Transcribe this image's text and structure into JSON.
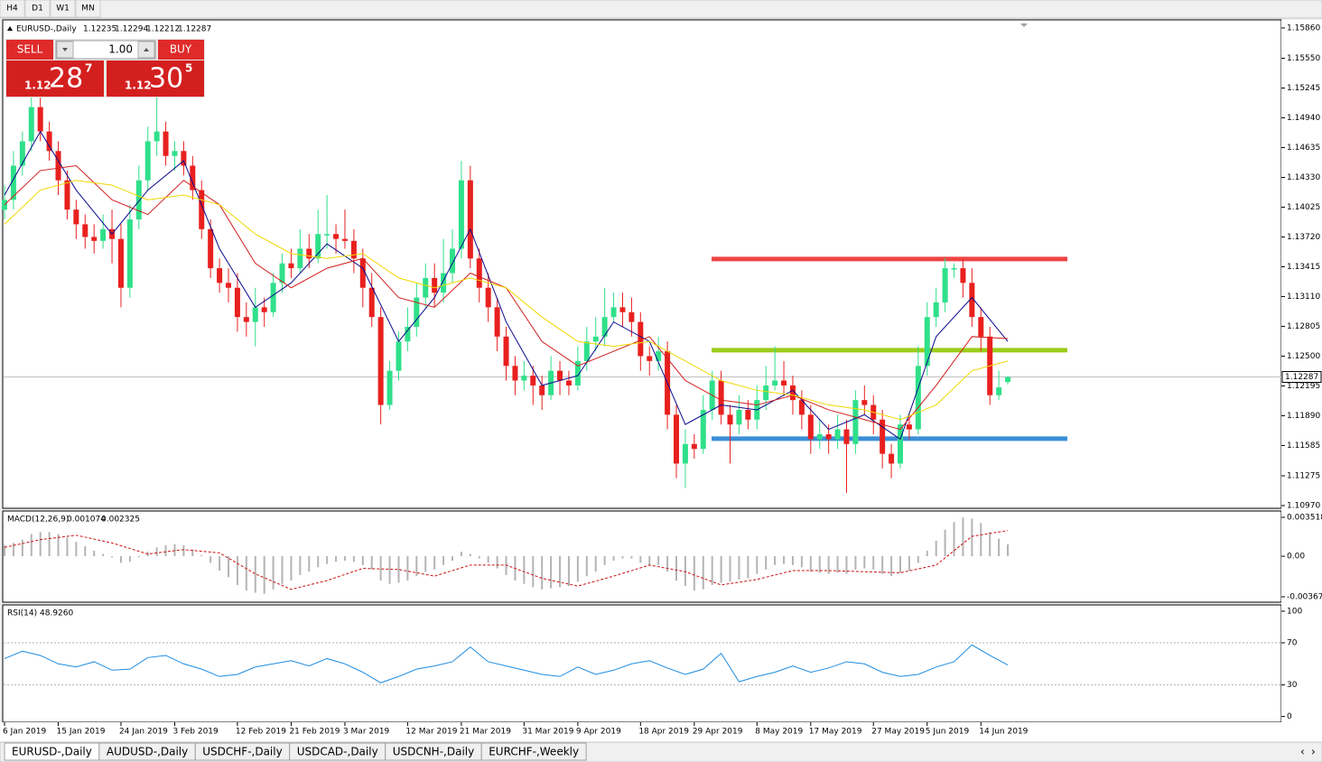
{
  "toolbar": {
    "buttons": [
      "H4",
      "D1",
      "W1",
      "MN"
    ]
  },
  "trade_panel": {
    "sell": "SELL",
    "buy": "BUY",
    "lot": "1.00",
    "sell_price": {
      "big_figure": "1.12",
      "pips": "28",
      "fraction": "7"
    },
    "buy_price": {
      "big_figure": "1.12",
      "pips": "30",
      "fraction": "5"
    }
  },
  "tabs": [
    "EURUSD-,Daily",
    "AUDUSD-,Daily",
    "USDCHF-,Daily",
    "USDCAD-,Daily",
    "USDCNH-,Daily",
    "EURCHF-,Weekly"
  ],
  "chart_data": [
    {
      "type": "candlestick",
      "title": "EURUSD-,Daily",
      "up_color": "#2fe08a",
      "down_color": "#e8201e",
      "categories": [
        "6 Jan 2019",
        null,
        null,
        null,
        null,
        null,
        "15 Jan 2019",
        null,
        null,
        null,
        null,
        null,
        null,
        "24 Jan 2019",
        null,
        null,
        null,
        null,
        null,
        "3 Feb 2019",
        null,
        null,
        null,
        null,
        null,
        null,
        "12 Feb 2019",
        null,
        null,
        null,
        null,
        null,
        "21 Feb 2019",
        null,
        null,
        null,
        null,
        null,
        "3 Mar 2019",
        null,
        null,
        null,
        null,
        null,
        null,
        "12 Mar 2019",
        null,
        null,
        null,
        null,
        null,
        "21 Mar 2019",
        null,
        null,
        null,
        null,
        null,
        null,
        "31 Mar 2019",
        null,
        null,
        null,
        null,
        null,
        "9 Apr 2019",
        null,
        null,
        null,
        null,
        null,
        null,
        "18 Apr 2019",
        null,
        null,
        null,
        null,
        null,
        "29 Apr 2019",
        null,
        null,
        null,
        null,
        null,
        null,
        "8 May 2019",
        null,
        null,
        null,
        null,
        null,
        "17 May 2019",
        null,
        null,
        null,
        null,
        null,
        null,
        "27 May 2019",
        null,
        null,
        null,
        null,
        null,
        "5 Jun 2019",
        null,
        null,
        null,
        null,
        null,
        "14 Jun 2019",
        null,
        null,
        null
      ],
      "open": [
        1.14,
        1.141,
        1.1445,
        1.147,
        1.1505,
        1.148,
        1.146,
        1.143,
        1.14,
        1.1385,
        1.1372,
        1.1368,
        1.138,
        1.137,
        1.132,
        1.139,
        1.143,
        1.147,
        1.148,
        1.1455,
        1.146,
        1.1445,
        1.142,
        1.138,
        1.134,
        1.1325,
        1.132,
        1.129,
        1.1285,
        1.13,
        1.1295,
        1.1325,
        1.1345,
        1.134,
        1.136,
        1.135,
        1.1375,
        1.1375,
        1.137,
        1.1368,
        1.135,
        1.132,
        1.129,
        1.12,
        1.1235,
        1.1265,
        1.128,
        1.131,
        1.133,
        1.1315,
        1.1335,
        1.136,
        1.143,
        1.135,
        1.132,
        1.13,
        1.127,
        1.124,
        1.1225,
        1.123,
        1.122,
        1.121,
        1.1235,
        1.1225,
        1.122,
        1.1245,
        1.1265,
        1.127,
        1.129,
        1.13,
        1.1295,
        1.1285,
        1.125,
        1.1245,
        1.1255,
        1.119,
        1.114,
        1.116,
        1.1155,
        1.1195,
        1.1225,
        1.119,
        1.118,
        1.1195,
        1.1185,
        1.1205,
        1.122,
        1.1225,
        1.122,
        1.1205,
        1.119,
        1.1165,
        1.117,
        1.1165,
        1.1175,
        1.116,
        1.1205,
        1.12,
        1.1185,
        1.115,
        1.114,
        1.118,
        1.1175,
        1.124,
        1.129,
        1.1305,
        1.134,
        1.134,
        1.1325,
        1.129,
        1.127,
        1.121,
        1.12235
      ],
      "high": [
        1.1425,
        1.146,
        1.148,
        1.1515,
        1.152,
        1.149,
        1.147,
        1.144,
        1.141,
        1.1395,
        1.1385,
        1.1395,
        1.14,
        1.1385,
        1.1405,
        1.1445,
        1.1485,
        1.1515,
        1.149,
        1.147,
        1.147,
        1.1455,
        1.143,
        1.139,
        1.135,
        1.134,
        1.1335,
        1.1305,
        1.132,
        1.131,
        1.1335,
        1.1355,
        1.136,
        1.138,
        1.1375,
        1.14,
        1.1415,
        1.1385,
        1.14,
        1.138,
        1.136,
        1.1335,
        1.13,
        1.1245,
        1.1275,
        1.13,
        1.1325,
        1.1345,
        1.1345,
        1.137,
        1.138,
        1.145,
        1.1445,
        1.136,
        1.1335,
        1.131,
        1.128,
        1.125,
        1.1245,
        1.124,
        1.123,
        1.125,
        1.1245,
        1.1235,
        1.126,
        1.128,
        1.129,
        1.132,
        1.1315,
        1.1315,
        1.131,
        1.1295,
        1.126,
        1.127,
        1.1265,
        1.12,
        1.1175,
        1.117,
        1.121,
        1.1235,
        1.1235,
        1.12,
        1.121,
        1.1205,
        1.122,
        1.124,
        1.126,
        1.1245,
        1.123,
        1.1215,
        1.12,
        1.1185,
        1.118,
        1.119,
        1.1185,
        1.1215,
        1.122,
        1.121,
        1.1195,
        1.116,
        1.119,
        1.119,
        1.126,
        1.1305,
        1.132,
        1.135,
        1.1345,
        1.135,
        1.134,
        1.13,
        1.128,
        1.1235,
        1.12294
      ],
      "low": [
        1.139,
        1.14,
        1.1435,
        1.146,
        1.147,
        1.145,
        1.1415,
        1.139,
        1.137,
        1.136,
        1.1355,
        1.136,
        1.1345,
        1.13,
        1.131,
        1.138,
        1.142,
        1.1455,
        1.1445,
        1.144,
        1.1435,
        1.141,
        1.137,
        1.133,
        1.1315,
        1.1305,
        1.1275,
        1.127,
        1.126,
        1.128,
        1.129,
        1.1315,
        1.133,
        1.1335,
        1.134,
        1.1345,
        1.136,
        1.1355,
        1.136,
        1.1335,
        1.13,
        1.128,
        1.118,
        1.1195,
        1.1225,
        1.1255,
        1.127,
        1.13,
        1.13,
        1.1305,
        1.1325,
        1.135,
        1.134,
        1.1305,
        1.1285,
        1.1255,
        1.1225,
        1.121,
        1.1215,
        1.12,
        1.1195,
        1.1205,
        1.121,
        1.121,
        1.1215,
        1.1235,
        1.1255,
        1.126,
        1.1285,
        1.128,
        1.127,
        1.1235,
        1.123,
        1.1235,
        1.1175,
        1.1125,
        1.1115,
        1.1145,
        1.115,
        1.1185,
        1.118,
        1.114,
        1.117,
        1.1175,
        1.1175,
        1.1195,
        1.1215,
        1.121,
        1.119,
        1.1175,
        1.115,
        1.1155,
        1.115,
        1.1155,
        1.111,
        1.115,
        1.119,
        1.117,
        1.1135,
        1.1125,
        1.1135,
        1.1165,
        1.117,
        1.123,
        1.128,
        1.1295,
        1.133,
        1.131,
        1.128,
        1.1255,
        1.12,
        1.1205,
        1.12212
      ],
      "close": [
        1.141,
        1.1445,
        1.147,
        1.1505,
        1.148,
        1.146,
        1.143,
        1.14,
        1.1385,
        1.1372,
        1.1368,
        1.138,
        1.137,
        1.132,
        1.139,
        1.143,
        1.147,
        1.148,
        1.1455,
        1.146,
        1.1445,
        1.142,
        1.138,
        1.134,
        1.1325,
        1.132,
        1.129,
        1.1285,
        1.13,
        1.1295,
        1.1325,
        1.1345,
        1.134,
        1.136,
        1.135,
        1.1375,
        1.1375,
        1.137,
        1.1368,
        1.135,
        1.132,
        1.129,
        1.12,
        1.1235,
        1.1265,
        1.128,
        1.131,
        1.133,
        1.1315,
        1.1335,
        1.136,
        1.143,
        1.135,
        1.132,
        1.13,
        1.127,
        1.124,
        1.1225,
        1.123,
        1.122,
        1.121,
        1.1235,
        1.1225,
        1.122,
        1.1245,
        1.1265,
        1.127,
        1.129,
        1.13,
        1.1295,
        1.1285,
        1.125,
        1.1245,
        1.1255,
        1.119,
        1.114,
        1.116,
        1.1155,
        1.1195,
        1.1225,
        1.119,
        1.118,
        1.1195,
        1.1185,
        1.1205,
        1.122,
        1.1225,
        1.122,
        1.1205,
        1.119,
        1.1165,
        1.117,
        1.1165,
        1.1175,
        1.116,
        1.1205,
        1.12,
        1.1185,
        1.115,
        1.114,
        1.118,
        1.1175,
        1.124,
        1.129,
        1.1305,
        1.134,
        1.134,
        1.1325,
        1.129,
        1.127,
        1.121,
        1.1218,
        1.12287
      ],
      "x": [
        0,
        4,
        8,
        12,
        16,
        20,
        24,
        28,
        32,
        36,
        40,
        44,
        48,
        52,
        56,
        60,
        64,
        68,
        72,
        76,
        80,
        84,
        88,
        92,
        96,
        100,
        104,
        108,
        112
      ],
      "overlays": [
        {
          "color": "#0a0a8c",
          "values": [
            1.1415,
            1.148,
            1.142,
            1.1375,
            1.142,
            1.145,
            1.136,
            1.13,
            1.1325,
            1.1365,
            1.134,
            1.1265,
            1.131,
            1.138,
            1.1285,
            1.122,
            1.123,
            1.1285,
            1.1265,
            1.118,
            1.12,
            1.1195,
            1.1215,
            1.1175,
            1.119,
            1.1165,
            1.127,
            1.131,
            1.1265
          ]
        },
        {
          "color": "#d21e1e",
          "values": [
            1.1405,
            1.144,
            1.1445,
            1.141,
            1.1395,
            1.143,
            1.1405,
            1.1345,
            1.132,
            1.134,
            1.135,
            1.131,
            1.13,
            1.1335,
            1.132,
            1.1265,
            1.124,
            1.1255,
            1.127,
            1.1225,
            1.1205,
            1.12,
            1.121,
            1.1195,
            1.1185,
            1.1175,
            1.122,
            1.127,
            1.1268
          ]
        },
        {
          "color": "#f0d800",
          "values": [
            1.1385,
            1.142,
            1.143,
            1.1425,
            1.141,
            1.1415,
            1.1405,
            1.1375,
            1.1355,
            1.135,
            1.1355,
            1.133,
            1.132,
            1.133,
            1.132,
            1.129,
            1.1265,
            1.126,
            1.1265,
            1.1245,
            1.1225,
            1.1215,
            1.121,
            1.12,
            1.1195,
            1.1185,
            1.12,
            1.1235,
            1.1245
          ]
        }
      ],
      "levels": [
        {
          "value": 1.13494,
          "color": "#ef4444"
        },
        {
          "value": 1.12561,
          "color": "#9ccc1a"
        },
        {
          "value": 1.11655,
          "color": "#3b8fd9"
        }
      ],
      "current_price": 1.12287,
      "ylim": [
        1.10942,
        1.15943
      ],
      "yticks": [
        {
          "value": 1.1586,
          "label": "1.15860"
        },
        {
          "value": 1.1555,
          "label": "1.15550"
        },
        1.15245,
        {
          "value": 1.1494,
          "label": "1.14940"
        },
        1.14635,
        {
          "value": 1.1433,
          "label": "1.14330"
        },
        1.14025,
        {
          "value": 1.1372,
          "label": "1.13720"
        },
        1.13415,
        {
          "value": 1.1311,
          "label": "1.13110"
        },
        1.12805,
        {
          "value": 1.125,
          "label": "1.12500"
        },
        1.12195,
        {
          "value": 1.1189,
          "label": "1.11890"
        },
        1.11585,
        1.11275,
        {
          "value": 1.1097,
          "label": "1.10970"
        }
      ]
    },
    {
      "type": "macd",
      "title": "MACD(12,26,9)",
      "color": "#b4b4b4",
      "values": [
        0.001,
        0.0012,
        0.0015,
        0.002,
        0.0022,
        0.0022,
        0.002,
        0.0017,
        0.0013,
        0.0009,
        0.0005,
        0.0002,
        -0.0001,
        -0.0006,
        -0.0005,
        -0.0001,
        0.0004,
        0.0008,
        0.001,
        0.0011,
        0.001,
        0.0006,
        0.0001,
        -0.0006,
        -0.0013,
        -0.0019,
        -0.0026,
        -0.0031,
        -0.0033,
        -0.0034,
        -0.003,
        -0.0025,
        -0.0022,
        -0.0017,
        -0.0014,
        -0.001,
        -0.0007,
        -0.0005,
        -0.0004,
        -0.0005,
        -0.0008,
        -0.0012,
        -0.0022,
        -0.0025,
        -0.0024,
        -0.0022,
        -0.0018,
        -0.0014,
        -0.0012,
        -0.0008,
        -0.0004,
        0.0004,
        0.0002,
        -0.0002,
        -0.0006,
        -0.0011,
        -0.0017,
        -0.0022,
        -0.0025,
        -0.0028,
        -0.003,
        -0.0029,
        -0.0028,
        -0.0027,
        -0.0023,
        -0.0018,
        -0.0014,
        -0.0008,
        -0.0004,
        -0.0002,
        -0.0002,
        -0.0006,
        -0.0008,
        -0.0008,
        -0.0014,
        -0.0022,
        -0.0027,
        -0.0031,
        -0.003,
        -0.0026,
        -0.0024,
        -0.0023,
        -0.0021,
        -0.002,
        -0.0016,
        -0.0012,
        -0.0008,
        -0.0007,
        -0.0008,
        -0.001,
        -0.0014,
        -0.0015,
        -0.0016,
        -0.0015,
        -0.0016,
        -0.0012,
        -0.0011,
        -0.0012,
        -0.0016,
        -0.0018,
        -0.0015,
        -0.0013,
        -0.0006,
        0.0005,
        0.0014,
        0.0024,
        0.0031,
        0.0035,
        0.0034,
        0.003,
        0.0022,
        0.0016,
        0.001074
      ],
      "signal": {
        "color": "#cc1111",
        "x": [
          0,
          4,
          8,
          12,
          16,
          20,
          24,
          28,
          32,
          36,
          40,
          44,
          48,
          52,
          56,
          60,
          64,
          68,
          72,
          76,
          80,
          84,
          88,
          92,
          96,
          100,
          104,
          108,
          112
        ],
        "values": [
          0.0008,
          0.0015,
          0.0019,
          0.0012,
          0.0002,
          0.0006,
          0.0003,
          -0.0016,
          -0.003,
          -0.0022,
          -0.0011,
          -0.0012,
          -0.0018,
          -0.0008,
          -0.0008,
          -0.002,
          -0.0027,
          -0.0018,
          -0.0008,
          -0.0014,
          -0.0026,
          -0.0021,
          -0.0013,
          -0.0013,
          -0.0014,
          -0.0015,
          -0.0008,
          0.0018,
          0.002325
        ]
      },
      "ylim": [
        -0.00416,
        0.004091
      ],
      "yticks": [
        0.003518,
        {
          "value": 0,
          "label": "0.00"
        },
        -0.00367
      ]
    },
    {
      "type": "line",
      "title": "RSI(14)",
      "color": "#1e8ce0",
      "x": [
        0,
        2,
        4,
        6,
        8,
        10,
        12,
        14,
        16,
        18,
        20,
        22,
        24,
        26,
        28,
        30,
        32,
        34,
        36,
        38,
        40,
        42,
        44,
        46,
        48,
        50,
        52,
        54,
        56,
        58,
        60,
        62,
        64,
        66,
        68,
        70,
        72,
        74,
        76,
        78,
        80,
        82,
        84,
        86,
        88,
        90,
        92,
        94,
        96,
        98,
        100,
        102,
        104,
        106,
        108,
        110,
        112
      ],
      "values": [
        55,
        62,
        58,
        50,
        47,
        52,
        44,
        45,
        56,
        58,
        50,
        45,
        38,
        40,
        47,
        50,
        53,
        48,
        55,
        50,
        42,
        32,
        38,
        45,
        48,
        52,
        66,
        52,
        48,
        44,
        40,
        38,
        47,
        40,
        44,
        50,
        53,
        46,
        40,
        45,
        60,
        33,
        38,
        42,
        48,
        42,
        46,
        52,
        50,
        42,
        38,
        40,
        47,
        52,
        68,
        58,
        48.926
      ],
      "value_labels": [
        null,
        null,
        null,
        null,
        null,
        null,
        null,
        null,
        null,
        null,
        null,
        null,
        null,
        null,
        null,
        null,
        null,
        null,
        null,
        null,
        null,
        null,
        null,
        null,
        null,
        null,
        null,
        null,
        null,
        null,
        null,
        null,
        null,
        null,
        null,
        null,
        null,
        null,
        null,
        null,
        null,
        null,
        null,
        null,
        null,
        null,
        null,
        null,
        null,
        null,
        null,
        null,
        null,
        null,
        null,
        null,
        "48.9260"
      ],
      "ylim": [
        -5.5,
        106
      ],
      "yticks": [
        100,
        70,
        30,
        0
      ]
    }
  ]
}
